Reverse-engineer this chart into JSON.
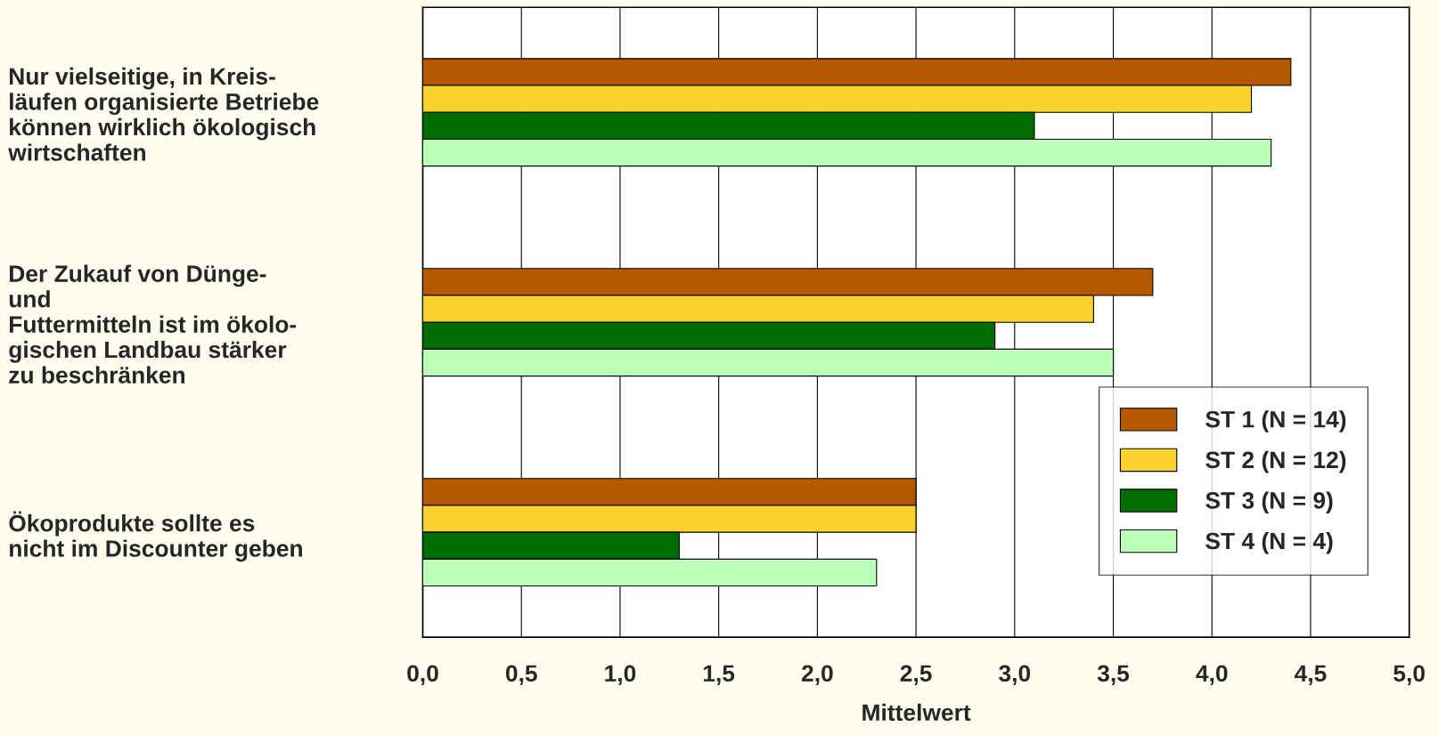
{
  "chart_data": {
    "type": "bar",
    "orientation": "horizontal",
    "categories": [
      "Nur vielseitige, in Kreis-\nläufen organisierte Betriebe\nkönnen wirklich ökologisch\nwirtschaften",
      "Der Zukauf von Dünge-\nund\nFuttermitteln ist im ökolo-\ngischen Landbau stärker\nzu beschränken",
      "Ökoprodukte sollte es\nnicht im Discounter geben"
    ],
    "series": [
      {
        "name": "ST 1 (N = 14)",
        "color": "#b35900",
        "values": [
          4.4,
          3.7,
          2.5
        ]
      },
      {
        "name": "ST 2 (N = 12)",
        "color": "#fcd22c",
        "values": [
          4.2,
          3.4,
          2.5
        ]
      },
      {
        "name": "ST 3 (N = 9)",
        "color": "#006d00",
        "values": [
          3.1,
          2.9,
          1.3
        ]
      },
      {
        "name": "ST 4 (N = 4)",
        "color": "#bbffbb",
        "values": [
          4.3,
          3.5,
          2.3
        ]
      }
    ],
    "xlabel": "Mittelwert",
    "xlim": [
      0,
      5
    ],
    "xticks": [
      {
        "value": 0,
        "label": "0,0"
      },
      {
        "value": 0.5,
        "label": "0,5"
      },
      {
        "value": 1,
        "label": "1,0"
      },
      {
        "value": 1.5,
        "label": "1,5"
      },
      {
        "value": 2,
        "label": "2,0"
      },
      {
        "value": 2.5,
        "label": "2,5"
      },
      {
        "value": 3,
        "label": "3,0"
      },
      {
        "value": 3.5,
        "label": "3,5"
      },
      {
        "value": 4,
        "label": "4,0"
      },
      {
        "value": 4.5,
        "label": "4,5"
      },
      {
        "value": 5,
        "label": "5,0"
      }
    ],
    "grid": "x",
    "legend": "bottom right"
  }
}
